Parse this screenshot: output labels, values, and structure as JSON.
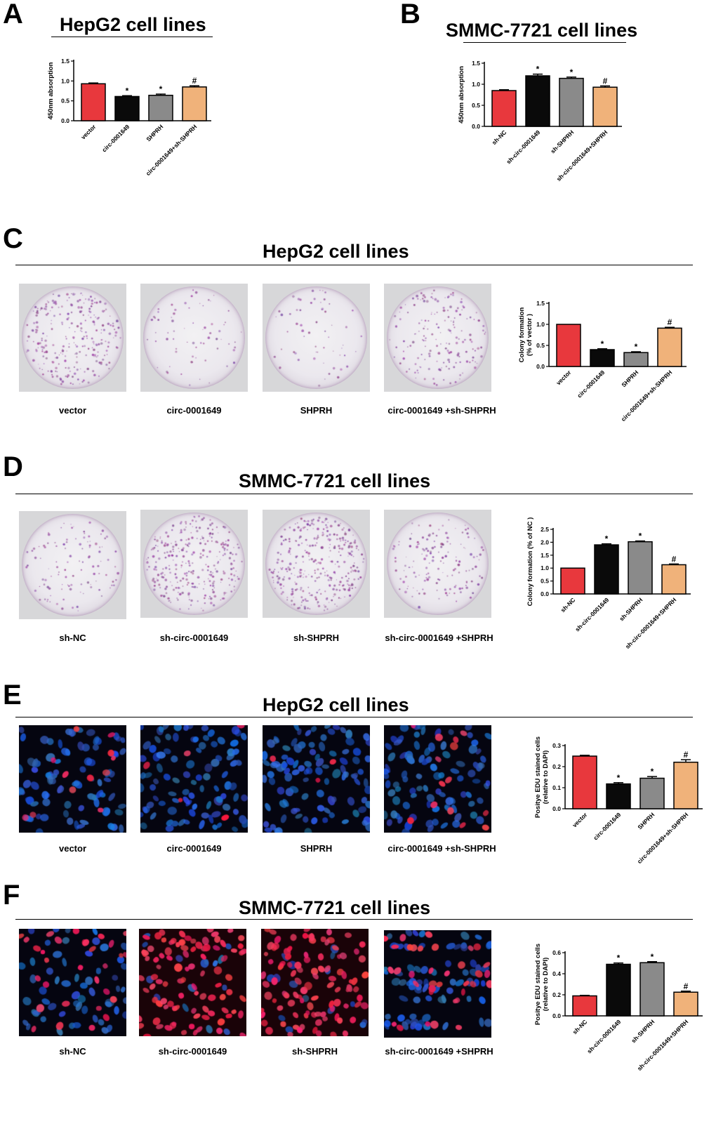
{
  "panels": {
    "A": {
      "letter": "A",
      "title": "HepG2 cell lines"
    },
    "B": {
      "letter": "B",
      "title": "SMMC-7721 cell lines"
    },
    "C": {
      "letter": "C",
      "title": "HepG2 cell lines",
      "captions": [
        "vector",
        "circ-0001649",
        "SHPRH",
        "circ-0001649 +sh-SHPRH"
      ]
    },
    "D": {
      "letter": "D",
      "title": "SMMC-7721 cell lines",
      "captions": [
        "sh-NC",
        "sh-circ-0001649",
        "sh-SHPRH",
        "sh-circ-0001649 +SHPRH"
      ]
    },
    "E": {
      "letter": "E",
      "title": "HepG2 cell lines",
      "captions": [
        "vector",
        "circ-0001649",
        "SHPRH",
        "circ-0001649 +sh-SHPRH"
      ]
    },
    "F": {
      "letter": "F",
      "title": "SMMC-7721 cell lines",
      "captions": [
        "sh-NC",
        "sh-circ-0001649",
        "sh-SHPRH",
        "sh-circ-0001649 +SHPRH"
      ]
    }
  },
  "colors": {
    "red": "#e8383d",
    "black": "#0a0a0a",
    "gray": "#8a8a8a",
    "tan": "#f0b27a",
    "dish_stain": "#8a3f8f",
    "nucleus_blue": "#2a5fd6",
    "edu_red": "#ff2a55"
  },
  "chart_data": [
    {
      "id": "A",
      "type": "bar",
      "ylabel": "450nm absorption",
      "ylim": [
        0,
        1.5
      ],
      "yticks": [
        "0.0",
        "0.5",
        "1.0",
        "1.5"
      ],
      "categories": [
        "vector",
        "circ-0001649",
        "SHPRH",
        "circ-0001649+sh-SHPRH"
      ],
      "values": [
        0.93,
        0.61,
        0.64,
        0.85
      ],
      "errors": [
        0.02,
        0.02,
        0.03,
        0.03
      ],
      "annotations": [
        "",
        "*",
        "*",
        "#"
      ]
    },
    {
      "id": "B",
      "type": "bar",
      "ylabel": "450nm absorption",
      "ylim": [
        0,
        1.5
      ],
      "yticks": [
        "0.0",
        "0.5",
        "1.0",
        "1.5"
      ],
      "categories": [
        "sh-NC",
        "sh-circ-0001649",
        "sh-SHPRH",
        "sh-circ-0001649+SHPRH"
      ],
      "values": [
        0.85,
        1.2,
        1.14,
        0.93
      ],
      "errors": [
        0.02,
        0.04,
        0.03,
        0.03
      ],
      "annotations": [
        "",
        "*",
        "*",
        "#"
      ]
    },
    {
      "id": "C",
      "type": "bar",
      "ylabel": "Colony formation",
      "ylabel2": "(% of vector )",
      "ylim": [
        0,
        1.5
      ],
      "yticks": [
        "0.0",
        "0.5",
        "1.0",
        "1.5"
      ],
      "categories": [
        "vector",
        "circ-0001649",
        "SHPRH",
        "circ-0001649+sh-SHPRH"
      ],
      "values": [
        1.0,
        0.4,
        0.33,
        0.91
      ],
      "errors": [
        0.0,
        0.02,
        0.02,
        0.02
      ],
      "annotations": [
        "",
        "*",
        "*",
        "#"
      ]
    },
    {
      "id": "D",
      "type": "bar",
      "ylabel": "Colony formation (% of NC )",
      "ylim": [
        0,
        2.5
      ],
      "yticks": [
        "0.0",
        "0.5",
        "1.0",
        "1.5",
        "2.0",
        "2.5"
      ],
      "categories": [
        "sh-NC",
        "sh-circ-0001649",
        "sh-SHPRH",
        "sh-circ-0001649+SHPRH"
      ],
      "values": [
        1.0,
        1.9,
        2.02,
        1.13
      ],
      "errors": [
        0.0,
        0.04,
        0.03,
        0.03
      ],
      "annotations": [
        "",
        "*",
        "*",
        "#"
      ]
    },
    {
      "id": "E",
      "type": "bar",
      "ylabel": "Positye EDU stained cells",
      "ylabel2": "(relative to DAPI)",
      "ylim": [
        0,
        0.3
      ],
      "yticks": [
        "0.0",
        "0.1",
        "0.2",
        "0.3"
      ],
      "categories": [
        "vector",
        "circ-0001649",
        "SHPRH",
        "circ-0001649+sh-SHPRH"
      ],
      "values": [
        0.25,
        0.118,
        0.145,
        0.221
      ],
      "errors": [
        0.004,
        0.006,
        0.008,
        0.012
      ],
      "annotations": [
        "",
        "*",
        "*",
        "#"
      ]
    },
    {
      "id": "F",
      "type": "bar",
      "ylabel": "Positye EDU stained cells",
      "ylabel2": "(relative to DAPI)",
      "ylim": [
        0,
        0.6
      ],
      "yticks": [
        "0.0",
        "0.2",
        "0.4",
        "0.6"
      ],
      "categories": [
        "sh-NC",
        "sh-circ-0001649",
        "sh-SHPRH",
        "sh-circ-0001649+SHPRH"
      ],
      "values": [
        0.19,
        0.49,
        0.505,
        0.225
      ],
      "errors": [
        0.005,
        0.012,
        0.01,
        0.01
      ],
      "annotations": [
        "",
        "*",
        "*",
        "#"
      ]
    }
  ]
}
